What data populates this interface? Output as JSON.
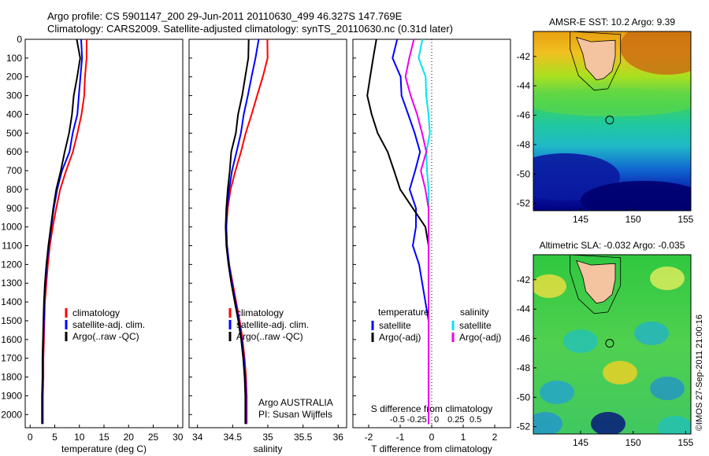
{
  "header": {
    "line1": "Argo profile: CS 5901147_200 29-Jun-2011 20110630_499 46.327S 147.769E",
    "line2": "Climatology: CARS2009. Satellite-adjusted climatology: synTS_20110630.nc (0.31d later)"
  },
  "colors": {
    "climatology": "#ff0000",
    "satellite": "#0000ff",
    "argo": "#000000",
    "salinity_satellite": "#00e5ee",
    "salinity_argo": "#ee00ee",
    "land": "#f4c3a0"
  },
  "chart_data": [
    {
      "type": "line",
      "id": "temperature",
      "xlabel": "temperature (deg C)",
      "xticks": [
        0,
        5,
        10,
        15,
        20,
        25,
        30
      ],
      "xlim": [
        -1,
        31
      ],
      "ylim": [
        2070,
        0
      ],
      "yticks": [
        0,
        100,
        200,
        300,
        400,
        500,
        600,
        700,
        800,
        900,
        1000,
        1100,
        1200,
        1300,
        1400,
        1500,
        1600,
        1700,
        1800,
        1900,
        2000
      ],
      "legend": [
        "climatology",
        "satellite-adj. clim.",
        "Argo(..raw -QC)"
      ],
      "series": [
        {
          "name": "climatology",
          "color": "red",
          "x": [
            11.5,
            11.5,
            11.4,
            11.0,
            10.2,
            9.4,
            8.4,
            7.3,
            6.1,
            5.3,
            4.6,
            4.0,
            3.6,
            3.3,
            3.0,
            2.9,
            2.8,
            2.7,
            2.7,
            2.6,
            2.6
          ],
          "y": [
            0,
            100,
            200,
            300,
            400,
            500,
            600,
            700,
            800,
            900,
            1000,
            1100,
            1200,
            1300,
            1400,
            1500,
            1600,
            1700,
            1800,
            1900,
            2050
          ]
        },
        {
          "name": "satellite-adj. clim.",
          "color": "blue",
          "x": [
            10.5,
            10.4,
            10.3,
            10.0,
            9.6,
            8.9,
            7.9,
            6.7,
            5.5,
            4.8,
            4.3,
            3.8,
            3.4,
            3.1,
            2.9,
            2.8,
            2.7,
            2.6,
            2.6,
            2.5,
            2.5
          ],
          "y": [
            0,
            100,
            200,
            300,
            400,
            500,
            600,
            700,
            800,
            900,
            1000,
            1100,
            1200,
            1300,
            1400,
            1500,
            1600,
            1700,
            1800,
            1900,
            2050
          ]
        },
        {
          "name": "Argo(..raw -QC)",
          "color": "black",
          "x": [
            9.7,
            9.9,
            9.6,
            8.9,
            8.4,
            8.0,
            7.3,
            6.4,
            5.3,
            4.7,
            4.2,
            3.7,
            3.3,
            3.0,
            2.8,
            2.7,
            2.6,
            2.5,
            2.5,
            2.4,
            2.4
          ],
          "y": [
            0,
            100,
            200,
            300,
            400,
            500,
            600,
            700,
            800,
            900,
            1000,
            1100,
            1200,
            1300,
            1400,
            1500,
            1600,
            1700,
            1800,
            1900,
            2050
          ]
        }
      ]
    },
    {
      "type": "line",
      "id": "salinity",
      "xlabel": "salinity",
      "xticks": [
        34,
        34.5,
        35,
        35.5,
        36
      ],
      "xlim": [
        33.88,
        36.12
      ],
      "ylim": [
        2070,
        0
      ],
      "legend": [
        "climatology",
        "satellite-adj. clim.",
        "Argo(..raw -QC)"
      ],
      "annotations": [
        "Argo AUSTRALIA",
        "PI: Susan Wijffels"
      ],
      "series": [
        {
          "name": "climatology",
          "color": "red",
          "x": [
            34.98,
            34.98,
            34.95,
            34.87,
            34.77,
            34.68,
            34.6,
            34.53,
            34.47,
            34.43,
            34.41,
            34.42,
            34.45,
            34.5,
            34.55,
            34.6,
            34.64,
            34.67,
            34.69,
            34.7,
            34.7
          ],
          "y": [
            0,
            100,
            200,
            300,
            400,
            500,
            600,
            700,
            800,
            900,
            1000,
            1100,
            1200,
            1300,
            1400,
            1500,
            1600,
            1700,
            1800,
            1900,
            2050
          ]
        },
        {
          "name": "satellite-adj. clim.",
          "color": "blue",
          "x": [
            34.86,
            34.82,
            34.77,
            34.72,
            34.67,
            34.62,
            34.56,
            34.5,
            34.45,
            34.42,
            34.41,
            34.42,
            34.45,
            34.49,
            34.54,
            34.59,
            34.63,
            34.66,
            34.68,
            34.69,
            34.69
          ],
          "y": [
            0,
            100,
            200,
            300,
            400,
            500,
            600,
            700,
            800,
            900,
            1000,
            1100,
            1200,
            1300,
            1400,
            1500,
            1600,
            1700,
            1800,
            1900,
            2050
          ]
        },
        {
          "name": "Argo(..raw -QC)",
          "color": "black",
          "x": [
            34.72,
            34.74,
            34.68,
            34.62,
            34.56,
            34.53,
            34.5,
            34.46,
            34.43,
            34.41,
            34.4,
            34.41,
            34.44,
            34.48,
            34.53,
            34.58,
            34.62,
            34.65,
            34.67,
            34.68,
            34.68
          ],
          "y": [
            0,
            100,
            200,
            300,
            400,
            500,
            600,
            700,
            800,
            900,
            1000,
            1100,
            1200,
            1300,
            1400,
            1500,
            1600,
            1700,
            1800,
            1900,
            2050
          ]
        }
      ]
    },
    {
      "type": "line",
      "id": "difference",
      "xlabel": "T difference from climatology",
      "xlabel_top": "S difference from climatology",
      "xticks": [
        -2,
        -1,
        0
      ],
      "xticks_extra": [
        1,
        2
      ],
      "xticks_top": [
        "-0.5",
        "-0.25",
        "0",
        "0.25",
        "0.5"
      ],
      "xlim": [
        -2.5,
        2.5
      ],
      "ylim": [
        2070,
        0
      ],
      "legend_temperature_title": "temperature",
      "legend_salinity_title": "salinity",
      "legend": [
        "satellite",
        "Argo(-adj)",
        "satellite",
        "Argo(-adj)"
      ],
      "series": [
        {
          "name": "temperature satellite",
          "color": "blue",
          "x": [
            -1.1,
            -1.2,
            -1.0,
            -1.0,
            -0.7,
            -0.5,
            -0.4,
            -0.5,
            -0.7,
            -0.5,
            -0.5,
            -0.6,
            -0.4,
            -0.3,
            -0.2,
            -0.1,
            -0.1,
            -0.1,
            -0.1,
            -0.1,
            -0.1
          ],
          "y": [
            0,
            100,
            200,
            300,
            400,
            500,
            600,
            700,
            800,
            900,
            1000,
            1100,
            1200,
            1300,
            1400,
            1500,
            1600,
            1700,
            1800,
            1900,
            2050
          ]
        },
        {
          "name": "temperature Argo(-adj)",
          "color": "black",
          "x": [
            -1.8,
            -1.9,
            -2.0,
            -2.0,
            -1.9,
            -1.7,
            -1.4,
            -1.2,
            -1.0,
            -0.6,
            -0.2,
            -0.1,
            -0.1,
            -0.1,
            -0.1,
            -0.1,
            -0.1,
            -0.1,
            -0.1,
            -0.1,
            -0.1
          ],
          "y": [
            0,
            100,
            200,
            300,
            400,
            500,
            600,
            700,
            800,
            900,
            1000,
            1100,
            1200,
            1300,
            1400,
            1500,
            1600,
            1700,
            1800,
            1900,
            2050
          ]
        },
        {
          "name": "salinity satellite",
          "color": "cyan",
          "x": [
            -0.3,
            -0.4,
            -0.2,
            -0.2,
            -0.1,
            -0.1,
            -0.2,
            -0.1,
            -0.1,
            -0.1,
            -0.1,
            -0.1,
            -0.1,
            -0.1,
            -0.1,
            -0.1,
            -0.1,
            -0.1,
            -0.1,
            -0.1,
            -0.1
          ],
          "y": [
            0,
            100,
            200,
            300,
            400,
            500,
            600,
            700,
            800,
            900,
            1000,
            1100,
            1200,
            1300,
            1400,
            1500,
            1600,
            1700,
            1800,
            1900,
            2050
          ]
        },
        {
          "name": "salinity Argo(-adj)",
          "color": "magenta",
          "x": [
            -0.6,
            -0.7,
            -0.8,
            -0.7,
            -0.5,
            -0.3,
            -0.2,
            -0.3,
            -0.2,
            -0.1,
            -0.1,
            -0.1,
            -0.1,
            -0.1,
            -0.1,
            -0.1,
            -0.1,
            -0.1,
            -0.1,
            -0.1,
            -0.1
          ],
          "y": [
            0,
            100,
            200,
            300,
            400,
            500,
            600,
            700,
            800,
            900,
            1000,
            1100,
            1200,
            1300,
            1400,
            1500,
            1600,
            1700,
            1800,
            1900,
            2050
          ]
        }
      ]
    },
    {
      "type": "heatmap",
      "id": "sst_map",
      "title": "AMSR-E SST: 10.2 Argo: 9.39",
      "xticks": [
        145,
        150,
        155
      ],
      "yticks": [
        -42,
        -44,
        -46,
        -48,
        -50,
        -52
      ],
      "xlim": [
        140.5,
        155.5
      ],
      "ylim": [
        -52.5,
        -40.3
      ],
      "argo_position": [
        147.769,
        -46.327
      ]
    },
    {
      "type": "heatmap",
      "id": "sla_map",
      "title": "Altimetric SLA: -0.032 Argo: -0.035",
      "xticks": [
        145,
        150,
        155
      ],
      "yticks": [
        -42,
        -44,
        -46,
        -48,
        -50,
        -52
      ],
      "xlim": [
        140.5,
        155.5
      ],
      "ylim": [
        -52.5,
        -40.3
      ],
      "argo_position": [
        147.769,
        -46.327
      ]
    }
  ],
  "footer": {
    "credit": "©IMOS 27-Sep-2011 21:00:16"
  }
}
